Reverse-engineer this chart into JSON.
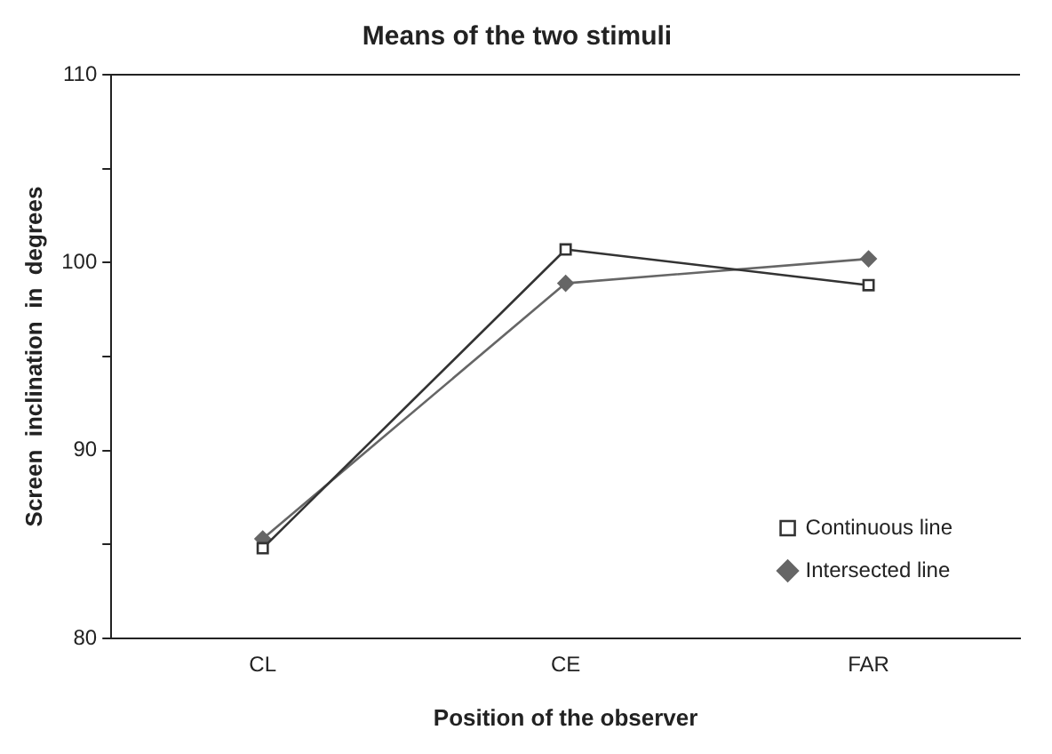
{
  "chart_data": {
    "type": "line",
    "title": "Means of the two stimuli",
    "xlabel": "Position of the observer",
    "ylabel": "Screen  inclination  in  degrees",
    "categories": [
      "CL",
      "CE",
      "FAR"
    ],
    "series": [
      {
        "name": "Continuous line",
        "color": "#333333",
        "values": [
          84.8,
          100.7,
          98.8
        ],
        "marker": "square"
      },
      {
        "name": "Intersected line",
        "color": "#666666",
        "values": [
          85.3,
          98.9,
          100.2
        ],
        "marker": "diamond"
      }
    ],
    "ylim": [
      80,
      110
    ],
    "yticks": [
      80,
      {
        "value": 85,
        "label": null
      },
      90,
      {
        "value": 95,
        "label": null
      },
      100,
      {
        "value": 105,
        "label": null
      },
      110
    ],
    "grid": false,
    "legend": "bottom right",
    "line_style": "solid"
  }
}
